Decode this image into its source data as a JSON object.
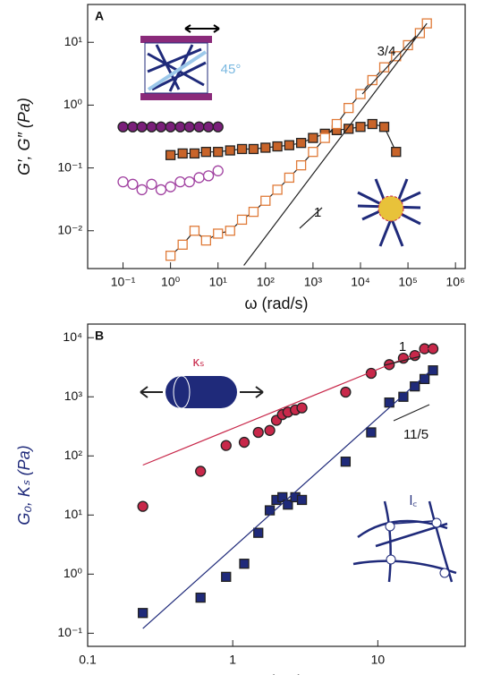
{
  "chart_data": [
    {
      "type": "scatter",
      "panel_label": "A",
      "log_x": true,
      "log_y": true,
      "xlabel": "ω (rad/s)",
      "ylabel": "G′, G″ (Pa)",
      "xlim": [
        0.018,
        1600000
      ],
      "ylim": [
        0.0025,
        40
      ],
      "xticks": [
        {
          "value": 0.1,
          "label": "10⁻¹"
        },
        {
          "value": 1,
          "label": "10⁰"
        },
        {
          "value": 10,
          "label": "10¹"
        },
        {
          "value": 100,
          "label": "10²"
        },
        {
          "value": 1000,
          "label": "10³"
        },
        {
          "value": 10000,
          "label": "10⁴"
        },
        {
          "value": 100000,
          "label": "10⁵"
        },
        {
          "value": 1000000,
          "label": "10⁶"
        }
      ],
      "yticks": [
        {
          "value": 0.01,
          "label": "10⁻²"
        },
        {
          "value": 0.1,
          "label": "10⁻¹"
        },
        {
          "value": 1,
          "label": "10⁰"
        },
        {
          "value": 10,
          "label": "10¹"
        }
      ],
      "series": [
        {
          "marker": "circle",
          "filled": true,
          "color": "#7a1f7a",
          "connect": false,
          "x": [
            0.1,
            0.16,
            0.25,
            0.4,
            0.63,
            1,
            1.6,
            2.5,
            4,
            6.3,
            10
          ],
          "values": [
            0.45,
            0.45,
            0.45,
            0.45,
            0.45,
            0.45,
            0.45,
            0.45,
            0.45,
            0.45,
            0.45
          ]
        },
        {
          "marker": "circle",
          "filled": false,
          "color": "#a040a0",
          "connect": false,
          "x": [
            0.1,
            0.16,
            0.25,
            0.4,
            0.63,
            1,
            1.6,
            2.5,
            4,
            6.3,
            10
          ],
          "values": [
            0.06,
            0.055,
            0.045,
            0.055,
            0.045,
            0.05,
            0.06,
            0.06,
            0.07,
            0.075,
            0.09
          ]
        },
        {
          "marker": "square",
          "filled": true,
          "color": "#c8642a",
          "connect": true,
          "x": [
            1,
            1.8,
            3.2,
            5.6,
            10,
            18,
            32,
            56,
            100,
            178,
            316,
            562,
            1000,
            1780,
            3160,
            5620,
            10000,
            17800,
            31600,
            56200
          ],
          "values": [
            0.16,
            0.17,
            0.17,
            0.18,
            0.18,
            0.19,
            0.2,
            0.2,
            0.21,
            0.22,
            0.23,
            0.25,
            0.3,
            0.35,
            0.4,
            0.42,
            0.45,
            0.5,
            0.45,
            0.18
          ]
        },
        {
          "marker": "square",
          "filled": false,
          "color": "#e07b39",
          "connect": true,
          "x": [
            1,
            1.8,
            3.2,
            5.6,
            10,
            18,
            32,
            56,
            100,
            178,
            316,
            562,
            1000,
            1780,
            3160,
            5620,
            10000,
            17800,
            31600,
            56200,
            100000,
            178000,
            250000
          ],
          "values": [
            0.004,
            0.006,
            0.01,
            0.007,
            0.009,
            0.01,
            0.015,
            0.02,
            0.03,
            0.045,
            0.07,
            0.11,
            0.18,
            0.3,
            0.5,
            0.9,
            1.5,
            2.5,
            4,
            6,
            9,
            14,
            20
          ]
        },
        {
          "marker": "none",
          "color": "#222",
          "connect": true,
          "x": [
            35,
            250000
          ],
          "values": [
            0.0028,
            20
          ]
        }
      ],
      "annotations": [
        "3/4",
        "1",
        "45°"
      ]
    },
    {
      "type": "scatter",
      "panel_label": "B",
      "log_x": true,
      "log_y": true,
      "xlabel": "cₚ (μM)",
      "ylabel": "G₀, Kₛ (Pa)",
      "xlim": [
        0.1,
        40
      ],
      "ylim": [
        0.06,
        17000
      ],
      "xticks": [
        0.1,
        1,
        10
      ],
      "yticks": [
        {
          "value": 0.1,
          "label": "10⁻¹"
        },
        {
          "value": 1,
          "label": "10⁰"
        },
        {
          "value": 10,
          "label": "10¹"
        },
        {
          "value": 100,
          "label": "10²"
        },
        {
          "value": 1000,
          "label": "10³"
        },
        {
          "value": 10000,
          "label": "10⁴"
        }
      ],
      "series": [
        {
          "marker": "circle",
          "filled": true,
          "color": "#c8284a",
          "connect": false,
          "x": [
            0.24,
            0.6,
            0.9,
            1.2,
            1.5,
            1.8,
            2.0,
            2.2,
            2.4,
            2.7,
            3,
            6,
            9,
            12,
            15,
            18,
            21,
            24
          ],
          "values": [
            14,
            55,
            150,
            170,
            250,
            270,
            400,
            500,
            550,
            600,
            650,
            1200,
            2500,
            3500,
            4500,
            5000,
            6500,
            6500
          ]
        },
        {
          "marker": "square",
          "filled": true,
          "color": "#1f2a7a",
          "connect": false,
          "x": [
            0.24,
            0.6,
            0.9,
            1.2,
            1.5,
            1.8,
            2.0,
            2.2,
            2.4,
            2.7,
            3,
            6,
            9,
            12,
            15,
            18,
            21,
            24
          ],
          "values": [
            0.22,
            0.4,
            0.9,
            1.5,
            5,
            12,
            18,
            20,
            15,
            20,
            18,
            80,
            250,
            800,
            1000,
            1500,
            2000,
            2800
          ]
        },
        {
          "marker": "none",
          "color": "#c8284a",
          "connect": true,
          "x": [
            0.24,
            24
          ],
          "values": [
            70,
            7000
          ]
        },
        {
          "marker": "none",
          "color": "#1f2a7a",
          "connect": true,
          "x": [
            0.24,
            24
          ],
          "values": [
            0.12,
            3000
          ]
        }
      ],
      "annotations": [
        "κₛ",
        "1",
        "11/5",
        "l꜀"
      ]
    }
  ]
}
